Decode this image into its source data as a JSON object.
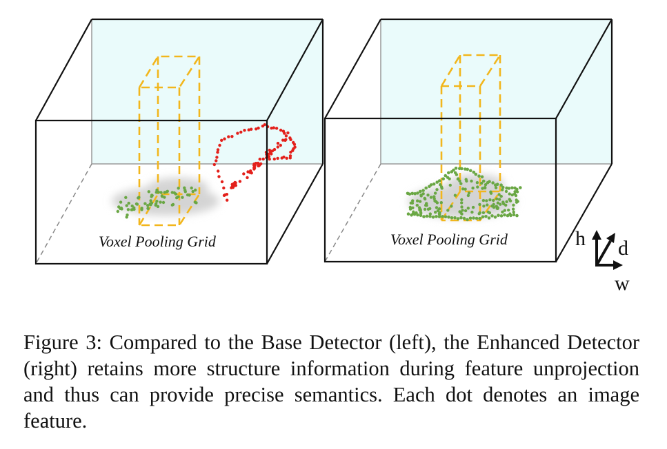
{
  "figure": {
    "left_panel": {
      "grid_label": "Voxel Pooling Grid"
    },
    "right_panel": {
      "grid_label": "Voxel Pooling Grid"
    },
    "axes": {
      "h": "h",
      "d": "d",
      "w": "w"
    },
    "colors": {
      "box_stroke": "#111111",
      "back_wall_fill": "#eafbfb",
      "pillar": "#f2b61c",
      "projected_dot": "#e3201b",
      "feature_dot": "#6aa744",
      "car_shadow": "#d4d4d4"
    }
  },
  "caption": {
    "text": "Figure 3: Compared to the Base Detector (left), the Enhanced Detector (right) retains more structure information during feature unprojection and thus can provide precise semantics. Each dot denotes an image feature."
  }
}
